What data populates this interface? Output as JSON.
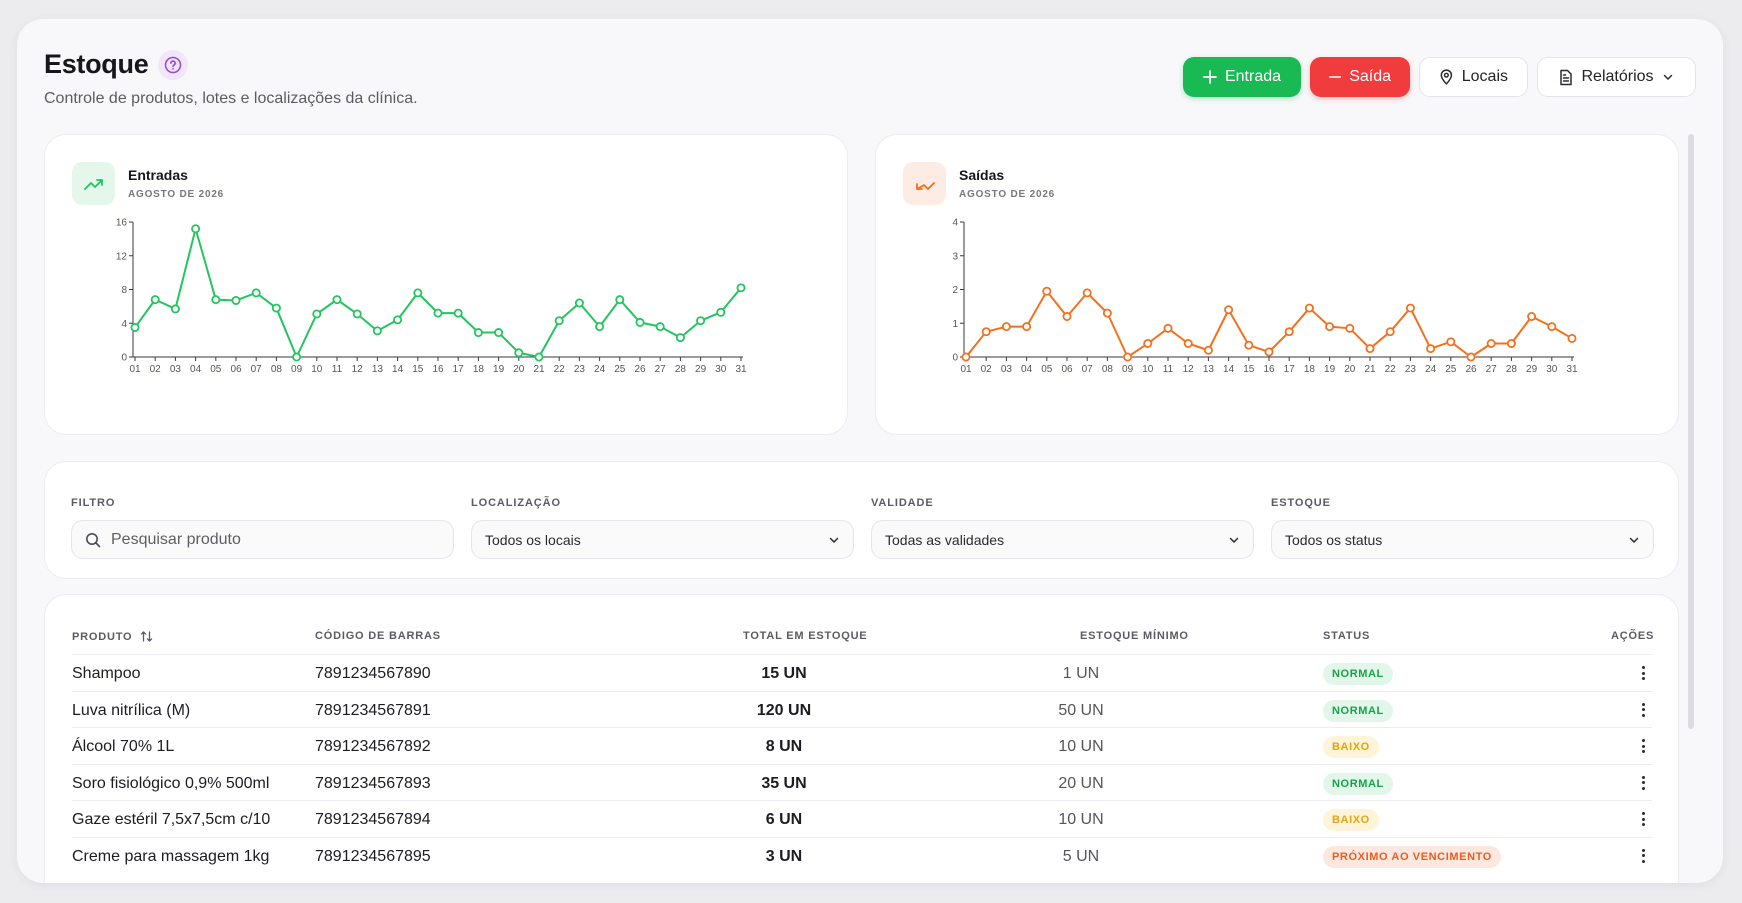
{
  "header": {
    "title": "Estoque",
    "subtitle": "Controle de produtos, lotes e localizações da clínica."
  },
  "actions": {
    "entrada": "Entrada",
    "saida": "Saída",
    "locais": "Locais",
    "relatorios": "Relatórios"
  },
  "colors": {
    "green": "#19b954",
    "red": "#f03c3c",
    "orange": "#f4701f"
  },
  "chart_data": [
    {
      "type": "line",
      "title": "Entradas",
      "subtitle": "AGOSTO DE 2026",
      "x": [
        "01",
        "02",
        "03",
        "04",
        "05",
        "06",
        "07",
        "08",
        "09",
        "10",
        "11",
        "12",
        "13",
        "14",
        "15",
        "16",
        "17",
        "18",
        "19",
        "20",
        "21",
        "22",
        "23",
        "24",
        "25",
        "26",
        "27",
        "28",
        "29",
        "30",
        "31"
      ],
      "values": [
        3.5,
        6.8,
        5.7,
        15.2,
        6.8,
        6.7,
        7.6,
        5.8,
        0,
        5.1,
        6.8,
        5.1,
        3.1,
        4.4,
        7.6,
        5.2,
        5.2,
        2.9,
        2.9,
        0.5,
        0,
        4.3,
        6.4,
        3.6,
        6.8,
        4.1,
        3.6,
        2.3,
        4.3,
        5.3,
        8.2
      ],
      "ylim": [
        0,
        16
      ],
      "yticks": [
        0,
        4,
        8,
        12,
        16
      ],
      "color": "#22c55e",
      "grid": false
    },
    {
      "type": "line",
      "title": "Saídas",
      "subtitle": "AGOSTO DE 2026",
      "x": [
        "01",
        "02",
        "03",
        "04",
        "05",
        "06",
        "07",
        "08",
        "09",
        "10",
        "11",
        "12",
        "13",
        "14",
        "15",
        "16",
        "17",
        "18",
        "19",
        "20",
        "21",
        "22",
        "23",
        "24",
        "25",
        "26",
        "27",
        "28",
        "29",
        "30",
        "31"
      ],
      "values": [
        0,
        0.75,
        0.9,
        0.9,
        1.95,
        1.2,
        1.9,
        1.3,
        0,
        0.4,
        0.85,
        0.4,
        0.2,
        1.4,
        0.35,
        0.15,
        0.75,
        1.45,
        0.9,
        0.85,
        0.25,
        0.75,
        1.45,
        0.25,
        0.45,
        0,
        0.4,
        0.4,
        1.2,
        0.9,
        0.55
      ],
      "ylim": [
        0,
        4
      ],
      "yticks": [
        0,
        1,
        2,
        3,
        4
      ],
      "color": "#f4701f",
      "grid": false
    }
  ],
  "filters": {
    "filtro": {
      "label": "FILTRO",
      "placeholder": "Pesquisar produto"
    },
    "localizacao": {
      "label": "LOCALIZAÇÃO",
      "value": "Todos os locais"
    },
    "validade": {
      "label": "VALIDADE",
      "value": "Todas as validades"
    },
    "estoque": {
      "label": "ESTOQUE",
      "value": "Todos os status"
    }
  },
  "table": {
    "headers": {
      "produto": "PRODUTO",
      "codigo": "CÓDIGO DE BARRAS",
      "total": "TOTAL EM ESTOQUE",
      "minimo": "ESTOQUE MÍNIMO",
      "status": "STATUS",
      "acoes": "AÇÕES"
    },
    "rows": [
      {
        "produto": "Shampoo",
        "codigo": "7891234567890",
        "total": "15 UN",
        "minimo": "1 UN",
        "status": "NORMAL",
        "status_type": "normal"
      },
      {
        "produto": "Luva nitrílica (M)",
        "codigo": "7891234567891",
        "total": "120 UN",
        "minimo": "50 UN",
        "status": "NORMAL",
        "status_type": "normal"
      },
      {
        "produto": "Álcool 70% 1L",
        "codigo": "7891234567892",
        "total": "8 UN",
        "minimo": "10 UN",
        "status": "BAIXO",
        "status_type": "baixo"
      },
      {
        "produto": "Soro fisiológico 0,9% 500ml",
        "codigo": "7891234567893",
        "total": "35 UN",
        "minimo": "20 UN",
        "status": "NORMAL",
        "status_type": "normal"
      },
      {
        "produto": "Gaze estéril 7,5x7,5cm c/10",
        "codigo": "7891234567894",
        "total": "6 UN",
        "minimo": "10 UN",
        "status": "BAIXO",
        "status_type": "baixo"
      },
      {
        "produto": "Creme para massagem 1kg",
        "codigo": "7891234567895",
        "total": "3 UN",
        "minimo": "5 UN",
        "status": "PRÓXIMO AO VENCIMENTO",
        "status_type": "venc"
      }
    ]
  }
}
